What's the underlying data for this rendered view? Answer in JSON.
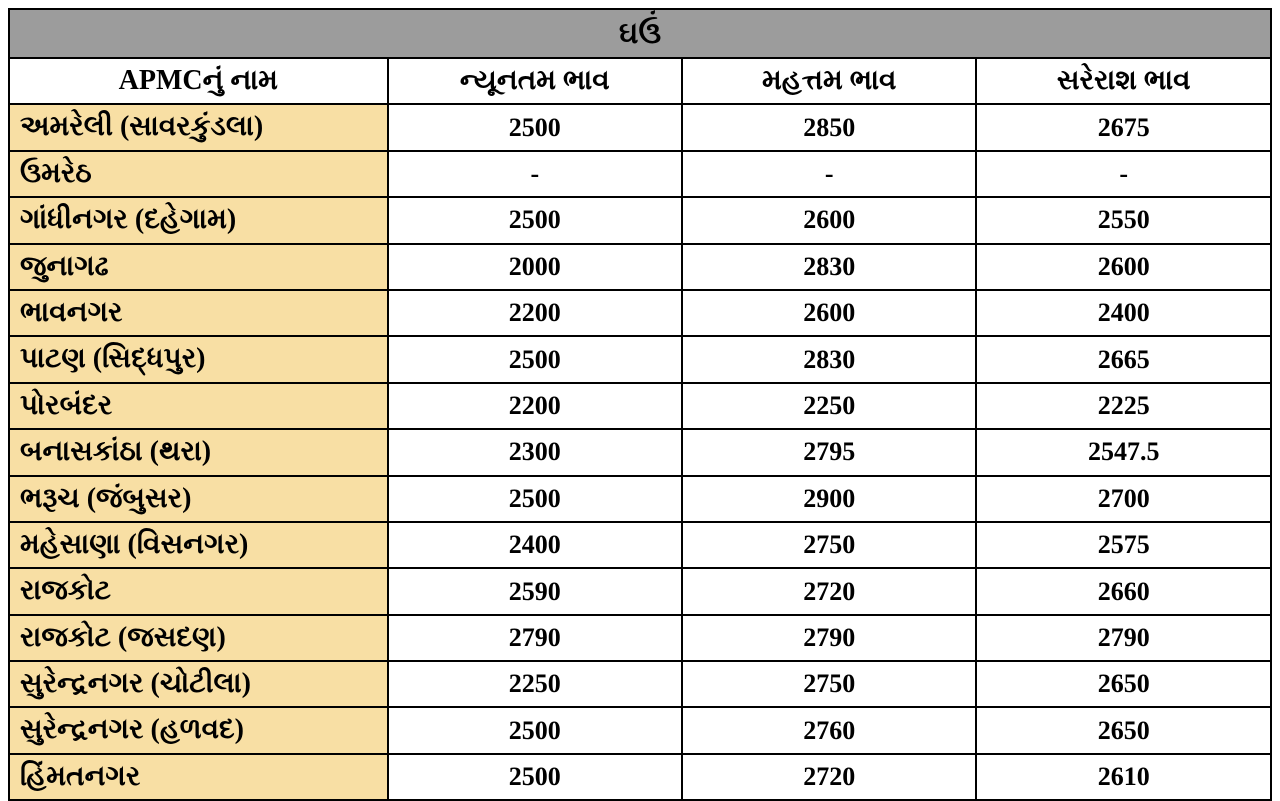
{
  "table": {
    "title": "ઘઉં",
    "title_bg": "#9c9c9c",
    "name_col_bg": "#f8dfa4",
    "border_color": "#000000",
    "columns": [
      "APMCનું નામ",
      "ન્યૂનતમ ભાવ",
      "મહત્તમ ભાવ",
      "સરેરાશ ભાવ"
    ],
    "rows": [
      [
        "અમરેલી (સાવરકુંડલા)",
        "2500",
        "2850",
        "2675"
      ],
      [
        "ઉમરેઠ",
        "-",
        "-",
        "-"
      ],
      [
        "ગાંધીનગર (દહેગામ)",
        "2500",
        "2600",
        "2550"
      ],
      [
        "જુનાગઢ",
        "2000",
        "2830",
        "2600"
      ],
      [
        "ભાવનગર",
        "2200",
        "2600",
        "2400"
      ],
      [
        "પાટણ (સિદ્ધપુર)",
        "2500",
        "2830",
        "2665"
      ],
      [
        "પોરબંદર",
        "2200",
        "2250",
        "2225"
      ],
      [
        "બનાસકાંઠા (થરા)",
        "2300",
        "2795",
        "2547.5"
      ],
      [
        "ભરૂચ (જંબુસર)",
        "2500",
        "2900",
        "2700"
      ],
      [
        "મહેસાણા (વિસનગર)",
        "2400",
        "2750",
        "2575"
      ],
      [
        "રાજકોટ",
        "2590",
        "2720",
        "2660"
      ],
      [
        "રાજકોટ (જસદણ)",
        "2790",
        "2790",
        "2790"
      ],
      [
        "સુરેન્દ્રનગર (ચોટીલા)",
        "2250",
        "2750",
        "2650"
      ],
      [
        "સુરેન્દ્રનગર (હળવદ)",
        "2500",
        "2760",
        "2650"
      ],
      [
        "હિંમતનગર",
        "2500",
        "2720",
        "2610"
      ]
    ]
  }
}
